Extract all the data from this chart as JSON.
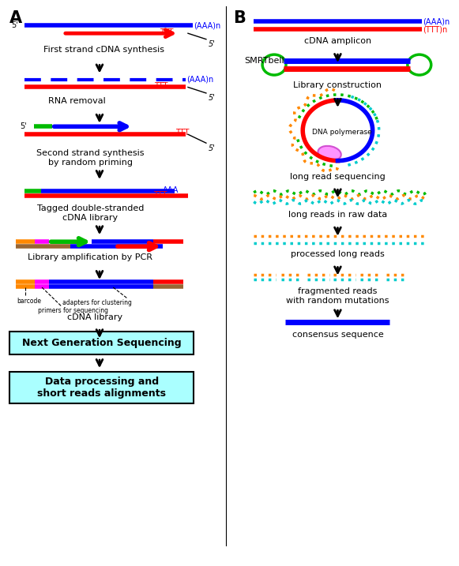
{
  "fig_width": 5.81,
  "fig_height": 7.17,
  "dpi": 100,
  "bg_color": "#ffffff",
  "title_A": "A",
  "title_B": "B",
  "blue": "#0000ff",
  "red": "#ff0000",
  "green": "#00bb00",
  "orange": "#ff8800",
  "magenta": "#ff00ff",
  "cyan": "#00cccc",
  "brown": "#996633",
  "lightcyan": "#aaffff",
  "pink": "#ff88ff",
  "darkpink": "#cc44cc",
  "labels": {
    "first_strand": "First strand cDNA synthesis",
    "rna_removal": "RNA removal",
    "second_strand": "Second strand synthesis\nby random priming",
    "tagged": "Tagged double-stranded\ncDNA library",
    "library_amp": "Library amplification by PCR",
    "cdna_lib": "cDNA library",
    "ngs": "Next Generation Sequencing",
    "data_proc": "Data processing and\nshort reads alignments",
    "cdna_amplicon": "cDNA amplicon",
    "smrt": "SMRTbell",
    "lib_const": "Library construction",
    "long_read_seq": "long read sequencing",
    "long_reads_raw": "long reads in raw data",
    "processed": "processed long reads",
    "fragmented": "fragmented reads\nwith random mutations",
    "consensus": "consensus sequence"
  }
}
